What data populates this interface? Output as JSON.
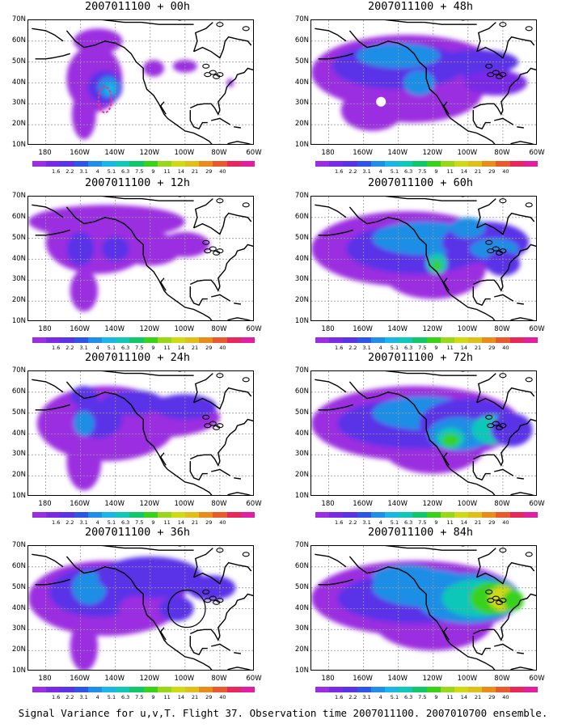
{
  "panels": [
    {
      "title": "2007011100 + 00h"
    },
    {
      "title": "2007011100 + 48h"
    },
    {
      "title": "2007011100 + 12h"
    },
    {
      "title": "2007011100 + 60h"
    },
    {
      "title": "2007011100 + 24h"
    },
    {
      "title": "2007011100 + 72h"
    },
    {
      "title": "2007011100 + 36h"
    },
    {
      "title": "2007011100 + 84h"
    }
  ],
  "lat_labels": [
    "70N",
    "60N",
    "50N",
    "40N",
    "30N",
    "20N",
    "10N"
  ],
  "lon_labels": [
    "180",
    "160W",
    "140W",
    "120W",
    "100W",
    "80W",
    "60W"
  ],
  "colorbar": {
    "labels": [
      "1.6",
      "2.2",
      "3.1",
      "4",
      "5.1",
      "6.3",
      "7.5",
      "9",
      "11",
      "14",
      "21",
      "29",
      "40"
    ],
    "colors": [
      "#9b2ee0",
      "#7a2ae6",
      "#5a33e8",
      "#2e55e8",
      "#1e8ee6",
      "#1ab6e6",
      "#10c8b8",
      "#10c86a",
      "#38d21a",
      "#98d818",
      "#d0da14",
      "#e0c018",
      "#e88c1c",
      "#e85a2c",
      "#e8285c",
      "#e020a0"
    ]
  },
  "caption": "Signal Variance for u,v,T. Flight 37. Observation time 2007011100. 2007010700 ensemble."
}
